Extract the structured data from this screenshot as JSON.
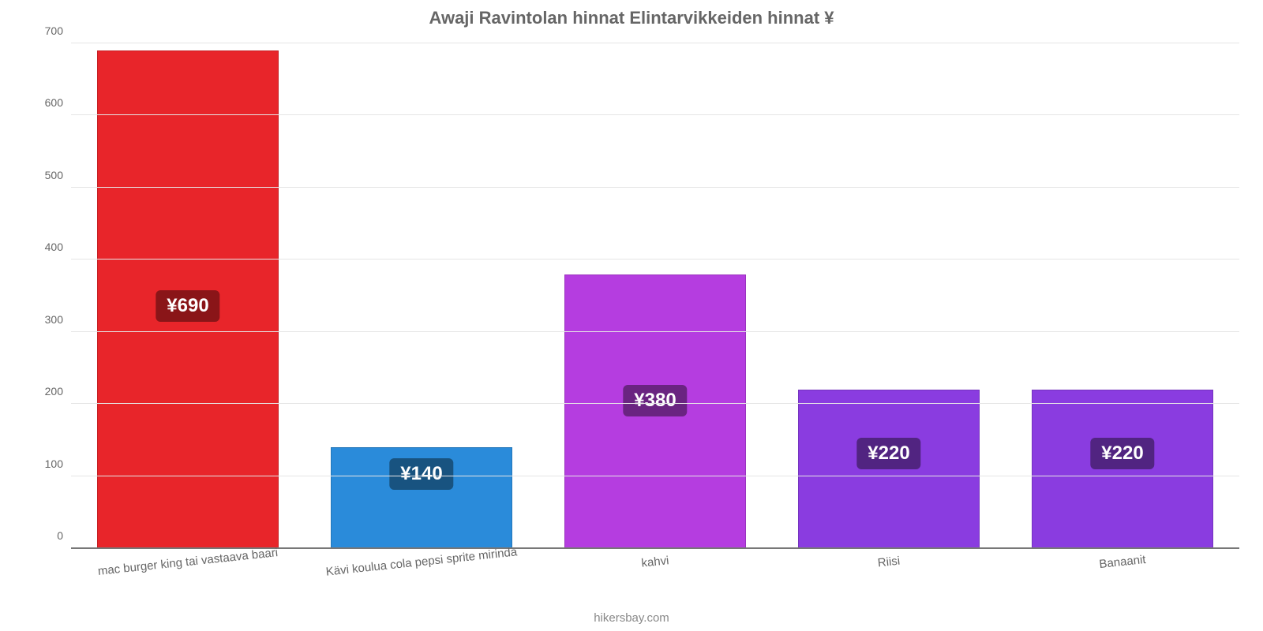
{
  "chart": {
    "type": "bar",
    "title": "Awaji Ravintolan hinnat Elintarvikkeiden hinnat ¥",
    "title_fontsize": 22,
    "title_color": "#666666",
    "background_color": "#ffffff",
    "grid_color": "#e5e5e5",
    "baseline_color": "#777777",
    "ylim_min": 0,
    "ylim_max": 700,
    "ytick_step": 100,
    "yticks": [
      {
        "value": 0,
        "label": "0"
      },
      {
        "value": 100,
        "label": "100"
      },
      {
        "value": 200,
        "label": "200"
      },
      {
        "value": 300,
        "label": "300"
      },
      {
        "value": 400,
        "label": "400"
      },
      {
        "value": 500,
        "label": "500"
      },
      {
        "value": 600,
        "label": "600"
      },
      {
        "value": 700,
        "label": "700"
      }
    ],
    "ytick_fontsize": 14,
    "ytick_color": "#666666",
    "xlabel_fontsize": 15,
    "xlabel_color": "#666666",
    "xlabel_rotation_deg": -6,
    "bar_width_ratio": 0.78,
    "value_badge_fontsize": 24,
    "value_badge_text_color": "#ffffff",
    "value_badge_radius": 6,
    "attribution": "hikersbay.com",
    "attribution_color": "#888888",
    "attribution_fontsize": 15,
    "bars": [
      {
        "category": "mac burger king tai vastaava baari",
        "value": 690,
        "value_label": "¥690",
        "bar_color": "#e8252a",
        "badge_color": "#8a1518",
        "badge_top_ratio": 0.48
      },
      {
        "category": "Kävi koulua cola pepsi sprite mirinda",
        "value": 140,
        "value_label": "¥140",
        "bar_color": "#2a8bda",
        "badge_color": "#185380",
        "badge_top_ratio": 0.1
      },
      {
        "category": "kahvi",
        "value": 380,
        "value_label": "¥380",
        "bar_color": "#b53de0",
        "badge_color": "#6a2481",
        "badge_top_ratio": 0.4
      },
      {
        "category": "Riisi",
        "value": 220,
        "value_label": "¥220",
        "bar_color": "#8a3ce0",
        "badge_color": "#512481",
        "badge_top_ratio": 0.3
      },
      {
        "category": "Banaanit",
        "value": 220,
        "value_label": "¥220",
        "bar_color": "#8a3ce0",
        "badge_color": "#512481",
        "badge_top_ratio": 0.3
      }
    ]
  }
}
